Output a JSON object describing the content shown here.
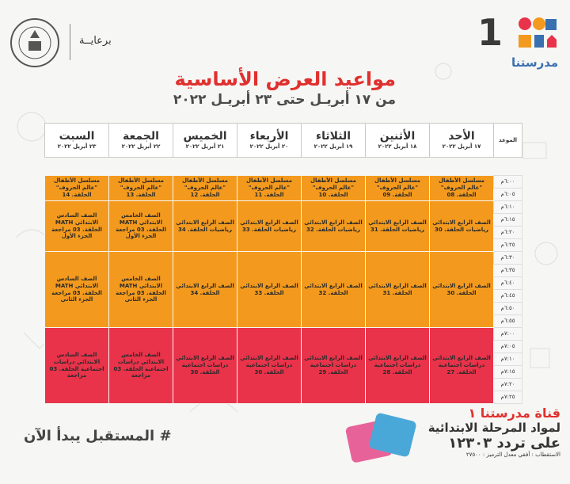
{
  "header": {
    "logo_number": "1",
    "brand_name": "مدرستنا",
    "sponsor": "برعايــة",
    "title": "مواعيد العرض الأساسية",
    "subtitle": "من ١٧ أبريـل حتى ٢٣ أبريـل ٢٠٢٢"
  },
  "colors": {
    "orange": "#f39a1e",
    "red": "#e8334a",
    "title_red": "#e0302e"
  },
  "table": {
    "time_header": "الموعد",
    "days": [
      {
        "name": "الأحد",
        "date": "١٧ أبريل ٢٠٢٢"
      },
      {
        "name": "الأثنين",
        "date": "١٨ أبريل ٢٠٢٢"
      },
      {
        "name": "الثلاثاء",
        "date": "١٩ أبريل ٢٠٢٢"
      },
      {
        "name": "الأربعاء",
        "date": "٢٠ أبريل ٢٠٢٢"
      },
      {
        "name": "الخميس",
        "date": "٢١ أبريل ٢٠٢٢"
      },
      {
        "name": "الجمعة",
        "date": "٢٢ أبريل ٢٠٢٢"
      },
      {
        "name": "السبت",
        "date": "٢٣ أبريل ٢٠٢٢"
      }
    ],
    "times": [
      "٦:٠٠م",
      "٦:٠٥م",
      "٦:١٠م",
      "٦:١٥م",
      "٦:٢٠م",
      "٦:٢٥م",
      "٦:٣٠م",
      "٦:٣٥م",
      "٦:٤٠م",
      "٦:٤٥م",
      "٦:٥٠م",
      "٦:٥٥م",
      "٧:٠٠م",
      "٧:٠٥م",
      "٧:١٠م",
      "٧:١٥م",
      "٧:٢٠م",
      "٧:٢٥م"
    ],
    "block1": [
      "مسلسل الأطفال \"عالم الحروف\" الحلقة. 08",
      "مسلسل الأطفال \"عالم الحروف\" الحلقة. 09",
      "مسلسل الأطفال \"عالم الحروف\" الحلقة. 10",
      "مسلسل الأطفال \"عالم الحروف\" الحلقة. 11",
      "مسلسل الأطفال \"عالم الحروف\" الحلقة. 12",
      "مسلسل الأطفال \"عالم الحروف\" الحلقة. 13",
      "مسلسل الأطفال \"عالم الحروف\" الحلقة. 14"
    ],
    "block2": [
      "الصف الرابع الابتدائي رياضيات الحلقة. 30",
      "الصف الرابع الابتدائي رياضيات الحلقة. 31",
      "الصف الرابع الابتدائي رياضيات الحلقة. 32",
      "الصف الرابع الابتدائي رياضيات الحلقة. 33",
      "الصف الرابع الابتدائي رياضيات الحلقة. 34",
      "الصف الخامس الابتدائي MATH الحلقة. 03 مراجعة الجزء الأول",
      "الصف السادس الابتدائي MATH الحلقة. 03 مراجعة الجزء الأول"
    ],
    "block3": [
      "الصف الرابع الابتدائي الحلقة. 30",
      "الصف الرابع الابتدائي الحلقة. 31",
      "الصف الرابع الابتدائي الحلقة. 32",
      "الصف الرابع الابتدائي الحلقة. 33",
      "الصف الرابع الابتدائي الحلقة. 34",
      "الصف الخامس الابتدائي MATH الحلقة. 03 مراجعة الجزء الثاني",
      "الصف السادس الابتدائي MATH الحلقة. 03 مراجعة الجزء الثاني"
    ],
    "block4": [
      "الصف الرابع الابتدائي دراسات اجتماعية الحلقة. 27",
      "الصف الرابع الابتدائي دراسات اجتماعية الحلقة. 28",
      "الصف الرابع الابتدائي دراسات اجتماعية الحلقة. 29",
      "الصف الرابع الابتدائي دراسات اجتماعية الحلقة. 30",
      "الصف الرابع الابتدائي دراسات اجتماعية الحلقة. 30",
      "الصف الخامس الابتدائي دراسات اجتماعية الحلقة. 03 مراجعة",
      "الصف السادس الابتدائي دراسات اجتماعية الحلقة. 03 مراجعة"
    ]
  },
  "footer": {
    "hashtag": "# المستقبل يبدأ الآن",
    "channel_prefix": "قناة",
    "channel_name": "مدرستنا ١",
    "channel_line2": "لمواد المرحلة الابتدائية",
    "frequency": "على تردد ١٢٣٠٣",
    "reception": "الاستقطاب : أفقي معدل الترميز : ٢٧٥٠٠"
  }
}
